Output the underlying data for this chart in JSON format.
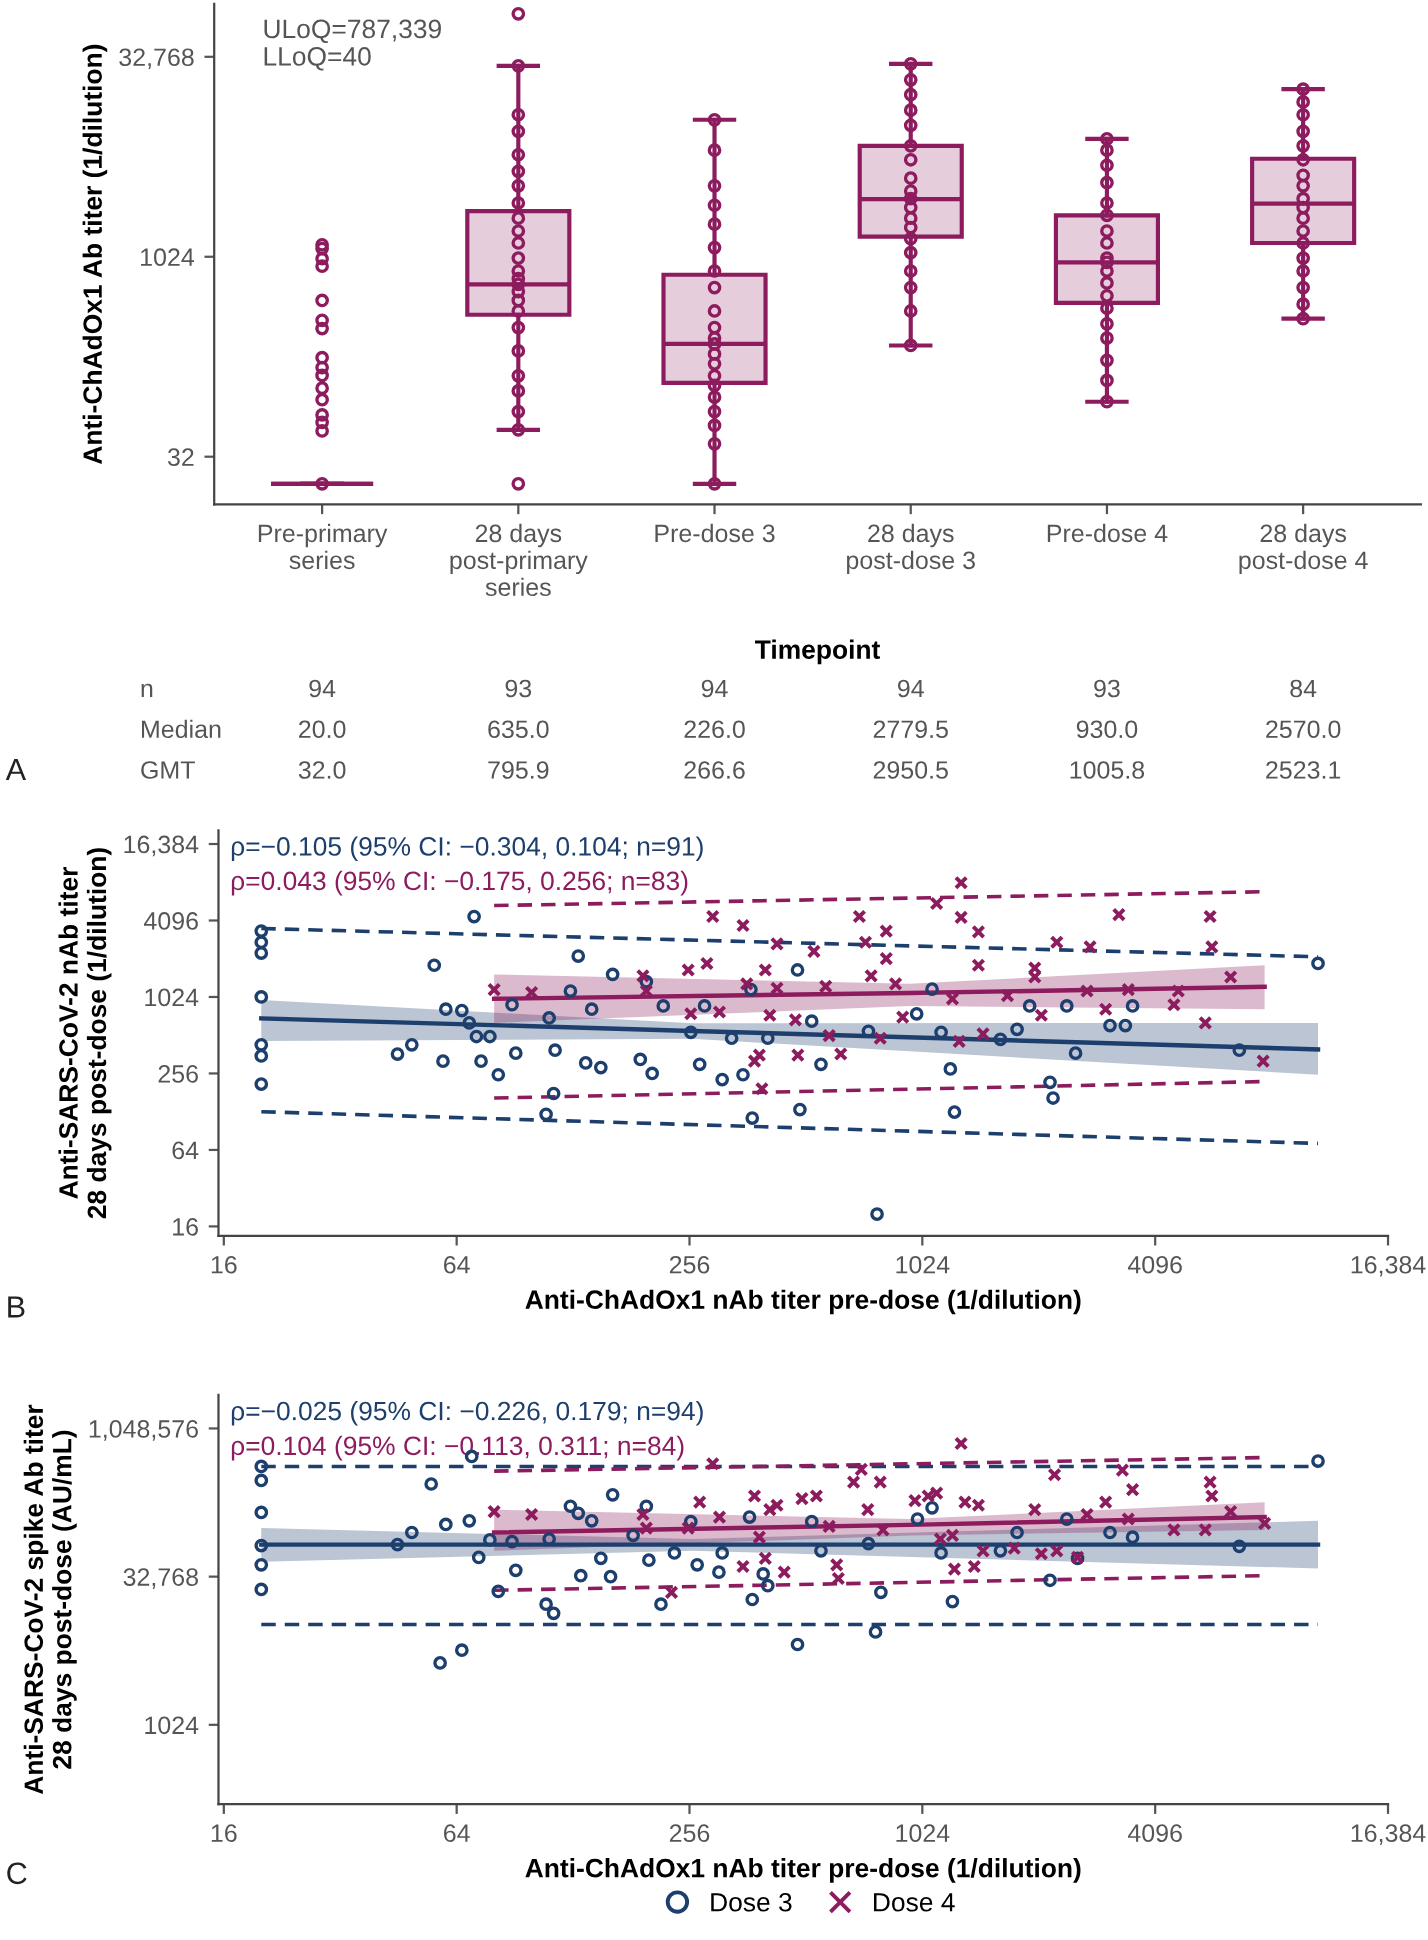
{
  "chart_data": [
    {
      "type": "box",
      "categories": [
        "Pre-primary\nseries",
        "28 days\npost-primary\nseries",
        "Pre-dose 3",
        "28 days\npost-dose 3",
        "Pre-dose 4",
        "28 days\npost-dose 4"
      ],
      "xlabel": "Timepoint",
      "ylabel": "Anti-ChAdOx1 Ab titer (1/dilution)",
      "log": "y",
      "ylim": [
        14,
        82000
      ],
      "yticks": [
        32,
        1024,
        {
          "value": 32768,
          "label": "32,768"
        }
      ],
      "annotations": [
        "ULoQ=787,339",
        "LLoQ=40",
        "n",
        "94",
        "93",
        "94",
        "94",
        "93",
        "84",
        "Median",
        "20.0",
        "635.0",
        "226.0",
        "2779.5",
        "930.0",
        "2570.0",
        "GMT",
        "32.0",
        "795.9",
        "266.6",
        "2950.5",
        "1005.8",
        "2523.1",
        "A"
      ],
      "series": [
        {
          "type": "box",
          "color": "#8c1c5e",
          "boxes": [
            {
              "low": 20,
              "q1": 20,
              "median": 20,
              "q3": 20,
              "high": 20
            },
            {
              "low": 51,
              "q1": 375,
              "median": 635,
              "q3": 2260,
              "high": 28000
            },
            {
              "low": 20,
              "q1": 115,
              "median": 226,
              "q3": 750,
              "high": 11000
            },
            {
              "low": 220,
              "q1": 1450,
              "median": 2779.5,
              "q3": 7000,
              "high": 29000
            },
            {
              "low": 83,
              "q1": 460,
              "median": 930,
              "q3": 2100,
              "high": 7900
            },
            {
              "low": 350,
              "q1": 1300,
              "median": 2570,
              "q3": 5600,
              "high": 18700
            }
          ]
        },
        {
          "type": "scatter",
          "color": "#8c1c5e",
          "marker": "circle",
          "x": [
            "Pre-primary\nseries",
            "Pre-primary\nseries",
            "Pre-primary\nseries",
            "Pre-primary\nseries",
            "Pre-primary\nseries",
            "Pre-primary\nseries",
            "Pre-primary\nseries",
            "Pre-primary\nseries",
            "Pre-primary\nseries",
            "Pre-primary\nseries",
            "Pre-primary\nseries",
            "Pre-primary\nseries",
            "Pre-primary\nseries",
            "Pre-primary\nseries",
            "Pre-primary\nseries",
            "Pre-primary\nseries",
            "28 days\npost-primary\nseries",
            "28 days\npost-primary\nseries",
            "28 days\npost-primary\nseries",
            "28 days\npost-primary\nseries",
            "28 days\npost-primary\nseries",
            "28 days\npost-primary\nseries",
            "28 days\npost-primary\nseries",
            "28 days\npost-primary\nseries",
            "28 days\npost-primary\nseries",
            "28 days\npost-primary\nseries",
            "28 days\npost-primary\nseries",
            "28 days\npost-primary\nseries",
            "28 days\npost-primary\nseries",
            "28 days\npost-primary\nseries",
            "28 days\npost-primary\nseries",
            "28 days\npost-primary\nseries",
            "28 days\npost-primary\nseries",
            "28 days\npost-primary\nseries",
            "28 days\npost-primary\nseries",
            "28 days\npost-primary\nseries",
            "28 days\npost-primary\nseries",
            "28 days\npost-primary\nseries",
            "28 days\npost-primary\nseries",
            "28 days\npost-primary\nseries",
            "28 days\npost-primary\nseries",
            "Pre-dose 3",
            "Pre-dose 3",
            "Pre-dose 3",
            "Pre-dose 3",
            "Pre-dose 3",
            "Pre-dose 3",
            "Pre-dose 3",
            "Pre-dose 3",
            "Pre-dose 3",
            "Pre-dose 3",
            "Pre-dose 3",
            "Pre-dose 3",
            "Pre-dose 3",
            "Pre-dose 3",
            "Pre-dose 3",
            "Pre-dose 3",
            "Pre-dose 3",
            "Pre-dose 3",
            "Pre-dose 3",
            "Pre-dose 3",
            "Pre-dose 3",
            "28 days\npost-dose 3",
            "28 days\npost-dose 3",
            "28 days\npost-dose 3",
            "28 days\npost-dose 3",
            "28 days\npost-dose 3",
            "28 days\npost-dose 3",
            "28 days\npost-dose 3",
            "28 days\npost-dose 3",
            "28 days\npost-dose 3",
            "28 days\npost-dose 3",
            "28 days\npost-dose 3",
            "28 days\npost-dose 3",
            "28 days\npost-dose 3",
            "28 days\npost-dose 3",
            "28 days\npost-dose 3",
            "28 days\npost-dose 3",
            "28 days\npost-dose 3",
            "28 days\npost-dose 3",
            "28 days\npost-dose 3",
            "Pre-dose 4",
            "Pre-dose 4",
            "Pre-dose 4",
            "Pre-dose 4",
            "Pre-dose 4",
            "Pre-dose 4",
            "Pre-dose 4",
            "Pre-dose 4",
            "Pre-dose 4",
            "Pre-dose 4",
            "Pre-dose 4",
            "Pre-dose 4",
            "Pre-dose 4",
            "Pre-dose 4",
            "Pre-dose 4",
            "Pre-dose 4",
            "Pre-dose 4",
            "Pre-dose 4",
            "Pre-dose 4",
            "28 days\npost-dose 4",
            "28 days\npost-dose 4",
            "28 days\npost-dose 4",
            "28 days\npost-dose 4",
            "28 days\npost-dose 4",
            "28 days\npost-dose 4",
            "28 days\npost-dose 4",
            "28 days\npost-dose 4",
            "28 days\npost-dose 4",
            "28 days\npost-dose 4",
            "28 days\npost-dose 4",
            "28 days\npost-dose 4",
            "28 days\npost-dose 4",
            "28 days\npost-dose 4",
            "28 days\npost-dose 4",
            "28 days\npost-dose 4",
            "28 days\npost-dose 4",
            "28 days\npost-dose 4"
          ],
          "values": [
            1260,
            1180,
            990,
            870,
            480,
            340,
            295,
            178,
            150,
            131,
            105,
            86,
            66,
            58,
            50,
            20,
            69000,
            28000,
            12000,
            9000,
            6000,
            4500,
            3500,
            2600,
            2000,
            1600,
            1300,
            1000,
            800,
            700,
            635,
            560,
            480,
            400,
            300,
            200,
            130,
            100,
            70,
            51,
            20,
            11000,
            6500,
            3500,
            2500,
            1800,
            1200,
            800,
            600,
            400,
            300,
            250,
            226,
            190,
            160,
            130,
            110,
            90,
            70,
            55,
            40,
            20,
            29000,
            22000,
            17000,
            13000,
            10000,
            7000,
            5500,
            4000,
            3200,
            2800,
            2400,
            2000,
            1700,
            1400,
            1100,
            800,
            600,
            400,
            220,
            7900,
            6500,
            5000,
            3700,
            2600,
            2100,
            1600,
            1300,
            1000,
            930,
            800,
            650,
            520,
            420,
            320,
            250,
            170,
            120,
            83,
            18700,
            15000,
            12000,
            9000,
            7000,
            5500,
            4200,
            3500,
            2800,
            2400,
            2000,
            1600,
            1300,
            1000,
            800,
            600,
            450,
            350
          ]
        }
      ]
    },
    {
      "type": "scatter",
      "xlabel": "Anti-ChAdOx1 nAb titer pre-dose (1/dilution)",
      "ylabel": "Anti-SARS-CoV-2 nAb titer\n28 days post-dose (1/dilution)",
      "log": "xy",
      "xlim": [
        15.5,
        16384
      ],
      "xticks": [
        16,
        64,
        256,
        1024,
        4096,
        {
          "value": 16384,
          "label": "16,384"
        }
      ],
      "ylim": [
        13.5,
        21000
      ],
      "yticks": [
        16,
        64,
        256,
        1024,
        4096,
        {
          "value": 16384,
          "label": "16,384"
        }
      ],
      "annotations": [
        "ρ=−0.105 (95% CI: −0.304, 0.104; n=91)",
        "ρ=0.043 (95% CI: −0.175, 0.256; n=83)",
        "B"
      ],
      "series": [
        {
          "type": "line",
          "color": "#1d3f6e",
          "x": [
            20,
            260,
            10800
          ],
          "values": [
            695,
            553,
            396
          ],
          "lower": [
            460,
            480,
            250
          ],
          "upper": [
            970,
            635,
            640
          ]
        },
        {
          "type": "line",
          "color": "#8c1c5e",
          "x": [
            80,
            950,
            7860
          ],
          "values": [
            990,
            1100,
            1230
          ],
          "lower": [
            640,
            870,
            820
          ],
          "upper": [
            1540,
            1300,
            1820
          ]
        },
        {
          "type": "line",
          "color": "#1d3f6e",
          "line_style": "dashed",
          "x": [
            20,
            10800
          ],
          "values": [
            3540,
            2120
          ]
        },
        {
          "type": "line",
          "color": "#1d3f6e",
          "line_style": "dashed",
          "x": [
            20,
            10800
          ],
          "values": [
            128,
            72
          ]
        },
        {
          "type": "line",
          "color": "#8c1c5e",
          "line_style": "dashed",
          "x": [
            80,
            7860
          ],
          "values": [
            5370,
            6900
          ]
        },
        {
          "type": "line",
          "color": "#8c1c5e",
          "line_style": "dashed",
          "x": [
            80,
            7860
          ],
          "values": [
            164,
            221
          ]
        },
        {
          "type": "scatter",
          "color": "#1d3f6e",
          "marker": "circle",
          "x": [
            20,
            20,
            20,
            20,
            20,
            20,
            20,
            45,
            49,
            56,
            59,
            60,
            66,
            69,
            71,
            72,
            74,
            78,
            82,
            89,
            91,
            109,
            111,
            115,
            114,
            126,
            132,
            138,
            143,
            151,
            162,
            191,
            198,
            205,
            219,
            258,
            272,
            280,
            311,
            329,
            352,
            369,
            372,
            408,
            487,
            494,
            530,
            560,
            782,
            743,
            990,
            1085,
            1145,
            1210,
            1240,
            1630,
            1800,
            1940,
            2190,
            2230,
            2420,
            2550,
            3130,
            3430,
            3580,
            6760,
            10800
          ],
          "values": [
            3380,
            2760,
            2270,
            1024,
            430,
            352,
            211,
            364,
            430,
            1820,
            320,
            820,
            800,
            640,
            4400,
            500,
            320,
            500,
            250,
            890,
            370,
            122,
            700,
            390,
            178,
            1140,
            2150,
            310,
            820,
            285,
            1540,
            330,
            1350,
            256,
            870,
            540,
            302,
            870,
            229,
            485,
            250,
            1170,
            114,
            485,
            1670,
            133,
            660,
            302,
            20,
            550,
            755,
            1180,
            540,
            278,
            127,
            475,
            570,
            870,
            218,
            164,
            870,
            370,
            610,
            610,
            870,
            390,
            1880
          ]
        },
        {
          "type": "scatter",
          "color": "#8c1c5e",
          "marker": "cross",
          "x": [
            80,
            100,
            194,
            198,
            254,
            258,
            284,
            294,
            306,
            352,
            360,
            377,
            388,
            394,
            402,
            413,
            431,
            431,
            481,
            488,
            537,
            576,
            588,
            630,
            704,
            730,
            755,
            797,
            826,
            826,
            873,
            911,
            1115,
            1225,
            1275,
            1290,
            1290,
            1430,
            1430,
            1470,
            1700,
            2000,
            2000,
            2080,
            2280,
            2730,
            2780,
            3050,
            3300,
            3490,
            4580,
            4700,
            5520,
            5680,
            5740,
            6420,
            7790
          ],
          "values": [
            1170,
            1110,
            1500,
            1140,
            1670,
            755,
            1880,
            4400,
            780,
            3740,
            1300,
            320,
            357,
            194,
            1670,
            735,
            2680,
            1200,
            676,
            357,
            2340,
            1240,
            508,
            364,
            4400,
            2760,
            1500,
            485,
            3380,
            2050,
            1300,
            710,
            5570,
            990,
            458,
            8120,
            4330,
            3330,
            1820,
            525,
            1050,
            1730,
            1470,
            735,
            2760,
            1140,
            2540,
            820,
            4550,
            1170,
            890,
            1140,
            640,
            4400,
            2540,
            1470,
            320
          ]
        }
      ]
    },
    {
      "type": "scatter",
      "xlabel": "Anti-ChAdOx1 nAb titer pre-dose (1/dilution)",
      "ylabel": "Anti-SARS-CoV-2 spike Ab titer\n28 days post-dose (AU/mL)",
      "log": "xy",
      "legend": "bottom",
      "xlim": [
        15.5,
        16384
      ],
      "xticks": [
        16,
        64,
        256,
        1024,
        4096,
        {
          "value": 16384,
          "label": "16,384"
        }
      ],
      "ylim": [
        160,
        2300000
      ],
      "yticks": [
        1024,
        {
          "value": 32768,
          "label": "32,768"
        },
        {
          "value": 1048576,
          "label": "1,048,576"
        }
      ],
      "annotations": [
        "ρ=−0.025 (95% CI: −0.226, 0.179; n=94)",
        "ρ=0.104 (95% CI: −0.113, 0.311; n=84)",
        "C"
      ],
      "series": [
        {
          "type": "line",
          "color": "#1d3f6e",
          "x": [
            20,
            260,
            10800
          ],
          "values": [
            69300,
            69300,
            69300
          ],
          "lower": [
            46300,
            59900,
            39700
          ],
          "upper": [
            102000,
            79000,
            121000
          ]
        },
        {
          "type": "line",
          "color": "#8c1c5e",
          "x": [
            80,
            950,
            7860
          ],
          "values": [
            92000,
            110000,
            132000
          ],
          "lower": [
            59900,
            86000,
            97800
          ],
          "upper": [
            157000,
            126000,
            187000
          ]
        },
        {
          "type": "line",
          "color": "#1d3f6e",
          "line_style": "dashed",
          "x": [
            20,
            10800
          ],
          "values": [
            431000,
            431000
          ]
        },
        {
          "type": "line",
          "color": "#1d3f6e",
          "line_style": "dashed",
          "x": [
            20,
            10800
          ],
          "values": [
            10700,
            10700
          ]
        },
        {
          "type": "line",
          "color": "#8c1c5e",
          "line_style": "dashed",
          "x": [
            80,
            7860
          ],
          "values": [
            386000,
            531000
          ]
        },
        {
          "type": "line",
          "color": "#8c1c5e",
          "line_style": "dashed",
          "x": [
            80,
            7860
          ],
          "values": [
            23800,
            33500
          ]
        },
        {
          "type": "scatter",
          "name": "Dose 3",
          "color": "#1d3f6e",
          "marker": "circle",
          "x": [
            20,
            20,
            20,
            20,
            20,
            20,
            45,
            49,
            55,
            58,
            60,
            66,
            69,
            70,
            73,
            78,
            82,
            91,
            89,
            109,
            114,
            111,
            126,
            132,
            134,
            143,
            151,
            162,
            160,
            183,
            198,
            201,
            216,
            234,
            258,
            268,
            305,
            311,
            366,
            372,
            397,
            408,
            487,
            530,
            560,
            775,
            800,
            743,
            995,
            1085,
            1145,
            1225,
            1630,
            1800,
            2190,
            2420,
            2580,
            3130,
            3580,
            6760,
            10800
          ],
          "values": [
            431000,
            311000,
            147000,
            67800,
            43200,
            24300,
            69300,
            92000,
            286000,
            4360,
            111000,
            5870,
            121000,
            545000,
            51400,
            77400,
            23200,
            38000,
            74300,
            17200,
            13900,
            79000,
            170000,
            144000,
            33500,
            121000,
            50300,
            222000,
            32768,
            86000,
            170000,
            48200,
            17200,
            57000,
            119000,
            43200,
            36400,
            57000,
            132000,
            19200,
            34900,
            26500,
            6700,
            119000,
            59900,
            9000,
            22700,
            70800,
            126000,
            164000,
            57000,
            18300,
            59900,
            92000,
            30100,
            126000,
            50300,
            92000,
            82500,
            66600,
            489000
          ]
        },
        {
          "type": "scatter",
          "name": "Dose 4",
          "color": "#8c1c5e",
          "marker": "cross",
          "x": [
            80,
            100,
            194,
            198,
            230,
            254,
            272,
            294,
            306,
            352,
            377,
            388,
            402,
            413,
            431,
            450,
            500,
            545,
            588,
            615,
            621,
            680,
            712,
            740,
            797,
            810,
            980,
            1060,
            1115,
            1140,
            1225,
            1240,
            1290,
            1320,
            1395,
            1430,
            1470,
            1770,
            2000,
            2080,
            2250,
            2280,
            2580,
            2730,
            3050,
            3370,
            3490,
            3580,
            4580,
            4700,
            5520,
            5680,
            5740,
            6420,
            7860
          ],
          "values": [
            150000,
            140000,
            140000,
            102000,
            22700,
            102000,
            187000,
            459000,
            132000,
            41500,
            216000,
            82500,
            50300,
            157000,
            174000,
            36400,
            203000,
            216000,
            106000,
            43200,
            31400,
            299000,
            403000,
            157000,
            299000,
            97800,
            194000,
            216000,
            231000,
            79000,
            86000,
            39000,
            737000,
            187000,
            41500,
            174000,
            59900,
            63800,
            157000,
            55900,
            355000,
            59900,
            51400,
            140000,
            187000,
            395000,
            126000,
            251000,
            97800,
            null,
            97800,
            299000,
            216000,
            150000,
            114000
          ]
        }
      ]
    }
  ]
}
